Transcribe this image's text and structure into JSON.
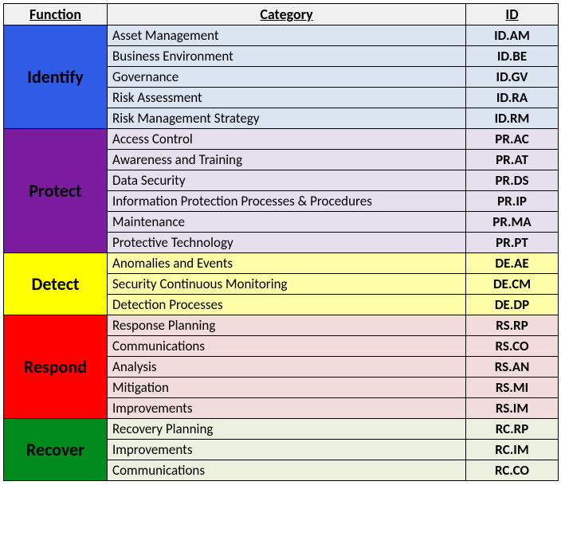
{
  "headers": {
    "function": "Function",
    "category": "Category",
    "id": "ID"
  },
  "header_bg": "#f0f0f0",
  "border_color": "#000000",
  "groups": [
    {
      "name": "Identify",
      "func_bg": "#2f5be7",
      "func_color": "#000000",
      "row_bg": "#dbe5f1",
      "rows": [
        {
          "category": "Asset Management",
          "id": "ID.AM"
        },
        {
          "category": "Business Environment",
          "id": "ID.BE"
        },
        {
          "category": "Governance",
          "id": "ID.GV"
        },
        {
          "category": "Risk Assessment",
          "id": "ID.RA"
        },
        {
          "category": "Risk Management Strategy",
          "id": "ID.RM"
        }
      ]
    },
    {
      "name": "Protect",
      "func_bg": "#7a1ba0",
      "func_color": "#000000",
      "row_bg": "#e6dfee",
      "rows": [
        {
          "category": "Access Control",
          "id": "PR.AC"
        },
        {
          "category": "Awareness and Training",
          "id": "PR.AT"
        },
        {
          "category": "Data Security",
          "id": "PR.DS"
        },
        {
          "category": "Information Protection Processes & Procedures",
          "id": "PR.IP"
        },
        {
          "category": "Maintenance",
          "id": "PR.MA"
        },
        {
          "category": "Protective Technology",
          "id": "PR.PT"
        }
      ]
    },
    {
      "name": "Detect",
      "func_bg": "#ffff00",
      "func_color": "#000000",
      "row_bg": "#fdfda8",
      "rows": [
        {
          "category": "Anomalies and Events",
          "id": "DE.AE"
        },
        {
          "category": "Security Continuous Monitoring",
          "id": "DE.CM"
        },
        {
          "category": "Detection Processes",
          "id": "DE.DP"
        }
      ]
    },
    {
      "name": "Respond",
      "func_bg": "#ff0000",
      "func_color": "#000000",
      "row_bg": "#f2dcdb",
      "rows": [
        {
          "category": "Response Planning",
          "id": "RS.RP"
        },
        {
          "category": "Communications",
          "id": "RS.CO"
        },
        {
          "category": "Analysis",
          "id": "RS.AN"
        },
        {
          "category": "Mitigation",
          "id": "RS.MI"
        },
        {
          "category": "Improvements",
          "id": "RS.IM"
        }
      ]
    },
    {
      "name": "Recover",
      "func_bg": "#008a1c",
      "func_color": "#000000",
      "row_bg": "#ebf1de",
      "rows": [
        {
          "category": "Recovery Planning",
          "id": "RC.RP"
        },
        {
          "category": "Improvements",
          "id": "RC.IM"
        },
        {
          "category": "Communications",
          "id": "RC.CO"
        }
      ]
    }
  ]
}
